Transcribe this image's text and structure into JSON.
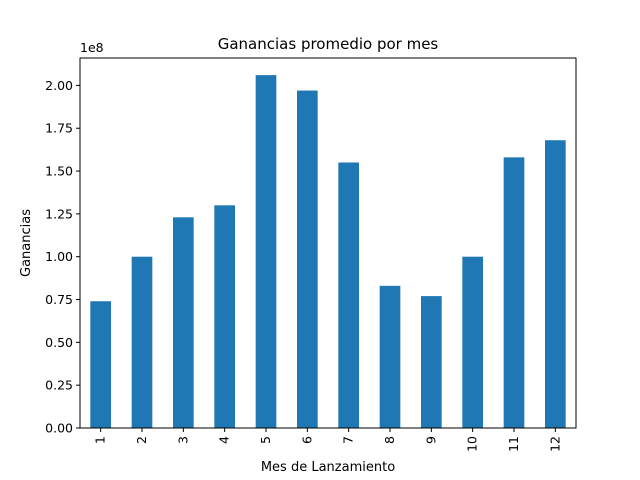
{
  "chart_data": {
    "type": "bar",
    "title": "Ganancias promedio por mes",
    "xlabel": "Mes de Lanzamiento",
    "ylabel": "Ganancias",
    "offset_label": "1e8",
    "categories": [
      "1",
      "2",
      "3",
      "4",
      "5",
      "6",
      "7",
      "8",
      "9",
      "10",
      "11",
      "12"
    ],
    "values": [
      0.74,
      1.0,
      1.23,
      1.3,
      2.06,
      1.97,
      1.55,
      0.83,
      0.77,
      1.0,
      1.58,
      1.68
    ],
    "value_scale": 100000000,
    "ylim": [
      0,
      2.16
    ],
    "yticks": [
      "0.00",
      "0.25",
      "0.50",
      "0.75",
      "1.00",
      "1.25",
      "1.50",
      "1.75",
      "2.00"
    ],
    "grid": false,
    "bar_color": "#1f77b4"
  }
}
